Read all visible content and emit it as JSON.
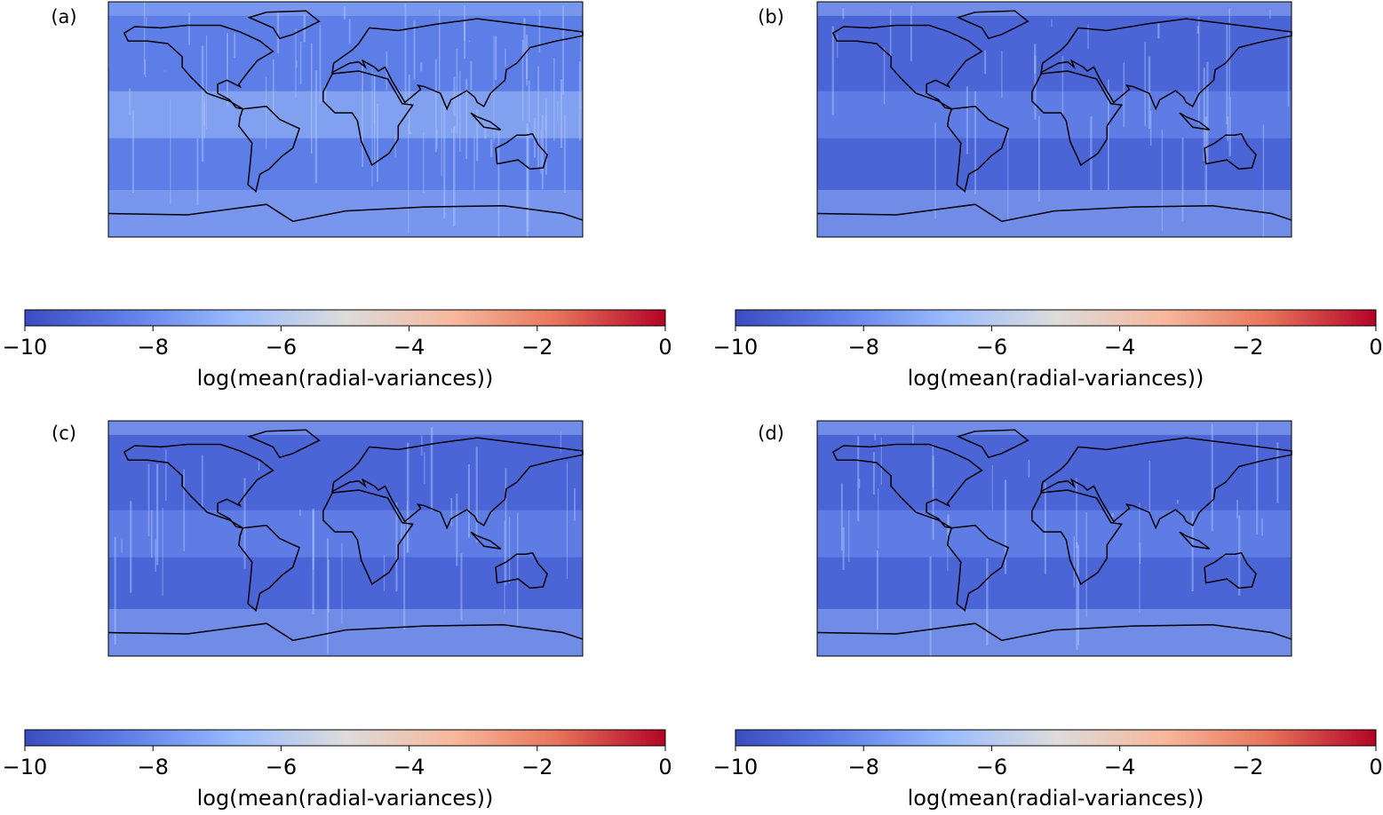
{
  "chart_data": [
    {
      "type": "map",
      "title": "(a)",
      "colorbar_label": "log(mean(radial-variances))",
      "clim": [
        -10,
        0
      ],
      "cticks": [
        {
          "value": -10,
          "label": "−10"
        },
        {
          "value": -8,
          "label": "−8"
        },
        {
          "value": -6,
          "label": "−6"
        },
        {
          "value": -4,
          "label": "−4"
        },
        {
          "value": -2,
          "label": "−2"
        },
        0
      ]
    },
    {
      "type": "map",
      "title": "(b)",
      "colorbar_label": "log(mean(radial-variances))",
      "clim": [
        -10,
        0
      ],
      "cticks": [
        {
          "value": -10,
          "label": "−10"
        },
        {
          "value": -8,
          "label": "−8"
        },
        {
          "value": -6,
          "label": "−6"
        },
        {
          "value": -4,
          "label": "−4"
        },
        {
          "value": -2,
          "label": "−2"
        },
        0
      ]
    },
    {
      "type": "map",
      "title": "(c)",
      "colorbar_label": "log(mean(radial-variances))",
      "clim": [
        -10,
        0
      ],
      "cticks": [
        {
          "value": -10,
          "label": "−10"
        },
        {
          "value": -8,
          "label": "−8"
        },
        {
          "value": -6,
          "label": "−6"
        },
        {
          "value": -4,
          "label": "−4"
        },
        {
          "value": -2,
          "label": "−2"
        },
        0
      ]
    },
    {
      "type": "map",
      "title": "(d)",
      "colorbar_label": "log(mean(radial-variances))",
      "clim": [
        -10,
        0
      ],
      "cticks": [
        {
          "value": -10,
          "label": "−10"
        },
        {
          "value": -8,
          "label": "−8"
        },
        {
          "value": -6,
          "label": "−6"
        },
        {
          "value": -4,
          "label": "−4"
        },
        {
          "value": -2,
          "label": "−2"
        },
        0
      ]
    }
  ]
}
